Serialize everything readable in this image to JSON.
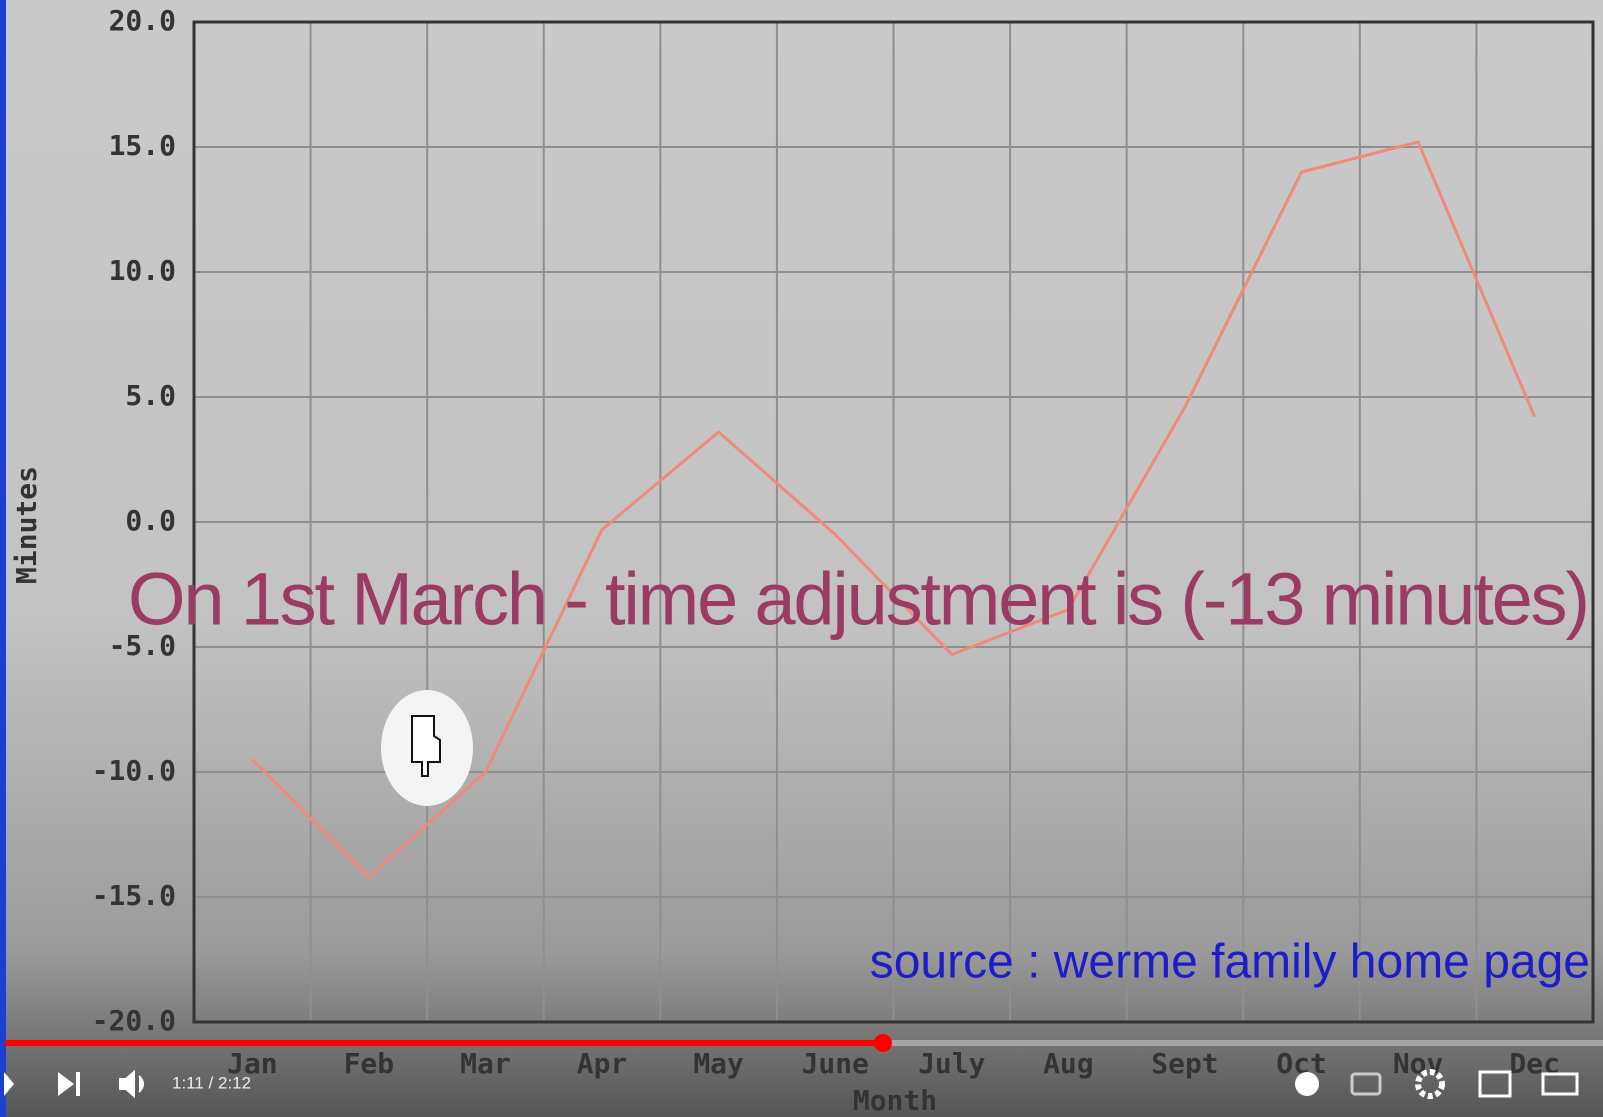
{
  "chart_data": {
    "type": "line",
    "categories": [
      "Jan",
      "Feb",
      "Mar",
      "Apr",
      "May",
      "June",
      "July",
      "Aug",
      "Sept",
      "Oct",
      "Nov",
      "Dec"
    ],
    "series": [
      {
        "color": "#f08a7a",
        "values": [
          -9.5,
          -14.2,
          -10.0,
          -0.3,
          3.6,
          -0.5,
          -5.3,
          -3.5,
          4.6,
          14.0,
          15.2,
          4.2
        ]
      }
    ],
    "ylim": [
      -20,
      20
    ],
    "yticks": [
      {
        "value": 20,
        "label": "20.0"
      },
      {
        "value": 15,
        "label": "15.0"
      },
      {
        "value": 10,
        "label": "10.0"
      },
      {
        "value": 5,
        "label": "5.0"
      },
      {
        "value": 0,
        "label": "0.0"
      },
      {
        "value": -5,
        "label": "-5.0"
      },
      {
        "value": -10,
        "label": "-10.0"
      },
      {
        "value": -15,
        "label": "-15.0"
      },
      {
        "value": -20,
        "label": "-20.0"
      }
    ],
    "ylabel": "Minutes",
    "xlabel": "Month",
    "grid": true,
    "annotation": "On 1st March - time adjustment is (-13 minutes)",
    "source": "source : werme family home page"
  },
  "player": {
    "time": "1:11 / 2:12"
  }
}
